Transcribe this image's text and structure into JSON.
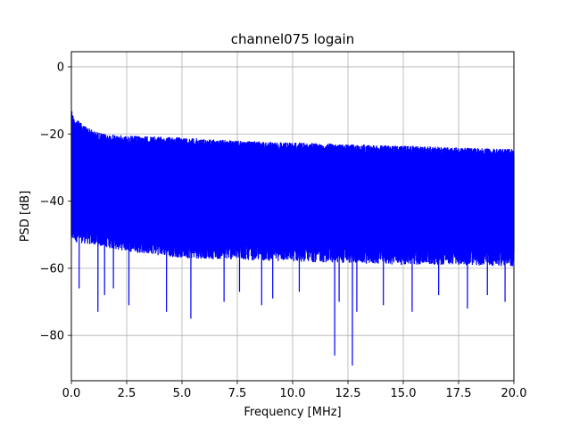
{
  "chart_data": {
    "type": "line",
    "title": "channel075 logain",
    "xlabel": "Frequency [MHz]",
    "ylabel": "PSD [dB]",
    "xlim": [
      0,
      20
    ],
    "ylim": [
      -93.5,
      4.5
    ],
    "grid": true,
    "xticks": [
      0,
      2.5,
      5,
      7.5,
      10,
      12.5,
      15,
      17.5,
      20
    ],
    "xtick_labels": [
      "0.0",
      "2.5",
      "5.0",
      "7.5",
      "10.0",
      "12.5",
      "15.0",
      "17.5",
      "20.0"
    ],
    "yticks": [
      0,
      -20,
      -40,
      -60,
      -80
    ],
    "ytick_labels": [
      "0",
      "−20",
      "−40",
      "−60",
      "−80"
    ],
    "series": [
      {
        "color": "#0000ff",
        "envelope_upper": [
          [
            0,
            -12
          ],
          [
            0.1,
            -15
          ],
          [
            0.5,
            -17
          ],
          [
            1,
            -19
          ],
          [
            1.5,
            -20
          ],
          [
            2.5,
            -20.5
          ],
          [
            5,
            -21
          ],
          [
            7.5,
            -22
          ],
          [
            10,
            -22.5
          ],
          [
            12.5,
            -23
          ],
          [
            15,
            -23.5
          ],
          [
            17.5,
            -24
          ],
          [
            20,
            -24.5
          ]
        ],
        "envelope_lower": [
          [
            0,
            -52
          ],
          [
            2.5,
            -55
          ],
          [
            5,
            -57
          ],
          [
            7.5,
            -57.5
          ],
          [
            10,
            -58
          ],
          [
            12.5,
            -58.5
          ],
          [
            15,
            -59
          ],
          [
            17.5,
            -59
          ],
          [
            20,
            -59.5
          ]
        ],
        "deep_notches": [
          [
            0.35,
            -66
          ],
          [
            1.2,
            -73
          ],
          [
            1.5,
            -68
          ],
          [
            1.9,
            -66
          ],
          [
            2.6,
            -71
          ],
          [
            4.3,
            -73
          ],
          [
            5.4,
            -75
          ],
          [
            6.9,
            -70
          ],
          [
            7.6,
            -67
          ],
          [
            8.6,
            -71
          ],
          [
            9.1,
            -69
          ],
          [
            10.3,
            -67
          ],
          [
            11.9,
            -86
          ],
          [
            12.1,
            -70
          ],
          [
            12.7,
            -89
          ],
          [
            12.9,
            -73
          ],
          [
            14.1,
            -71
          ],
          [
            15.4,
            -73
          ],
          [
            16.6,
            -68
          ],
          [
            17.9,
            -72
          ],
          [
            18.8,
            -68
          ],
          [
            19.6,
            -70
          ]
        ]
      }
    ]
  }
}
